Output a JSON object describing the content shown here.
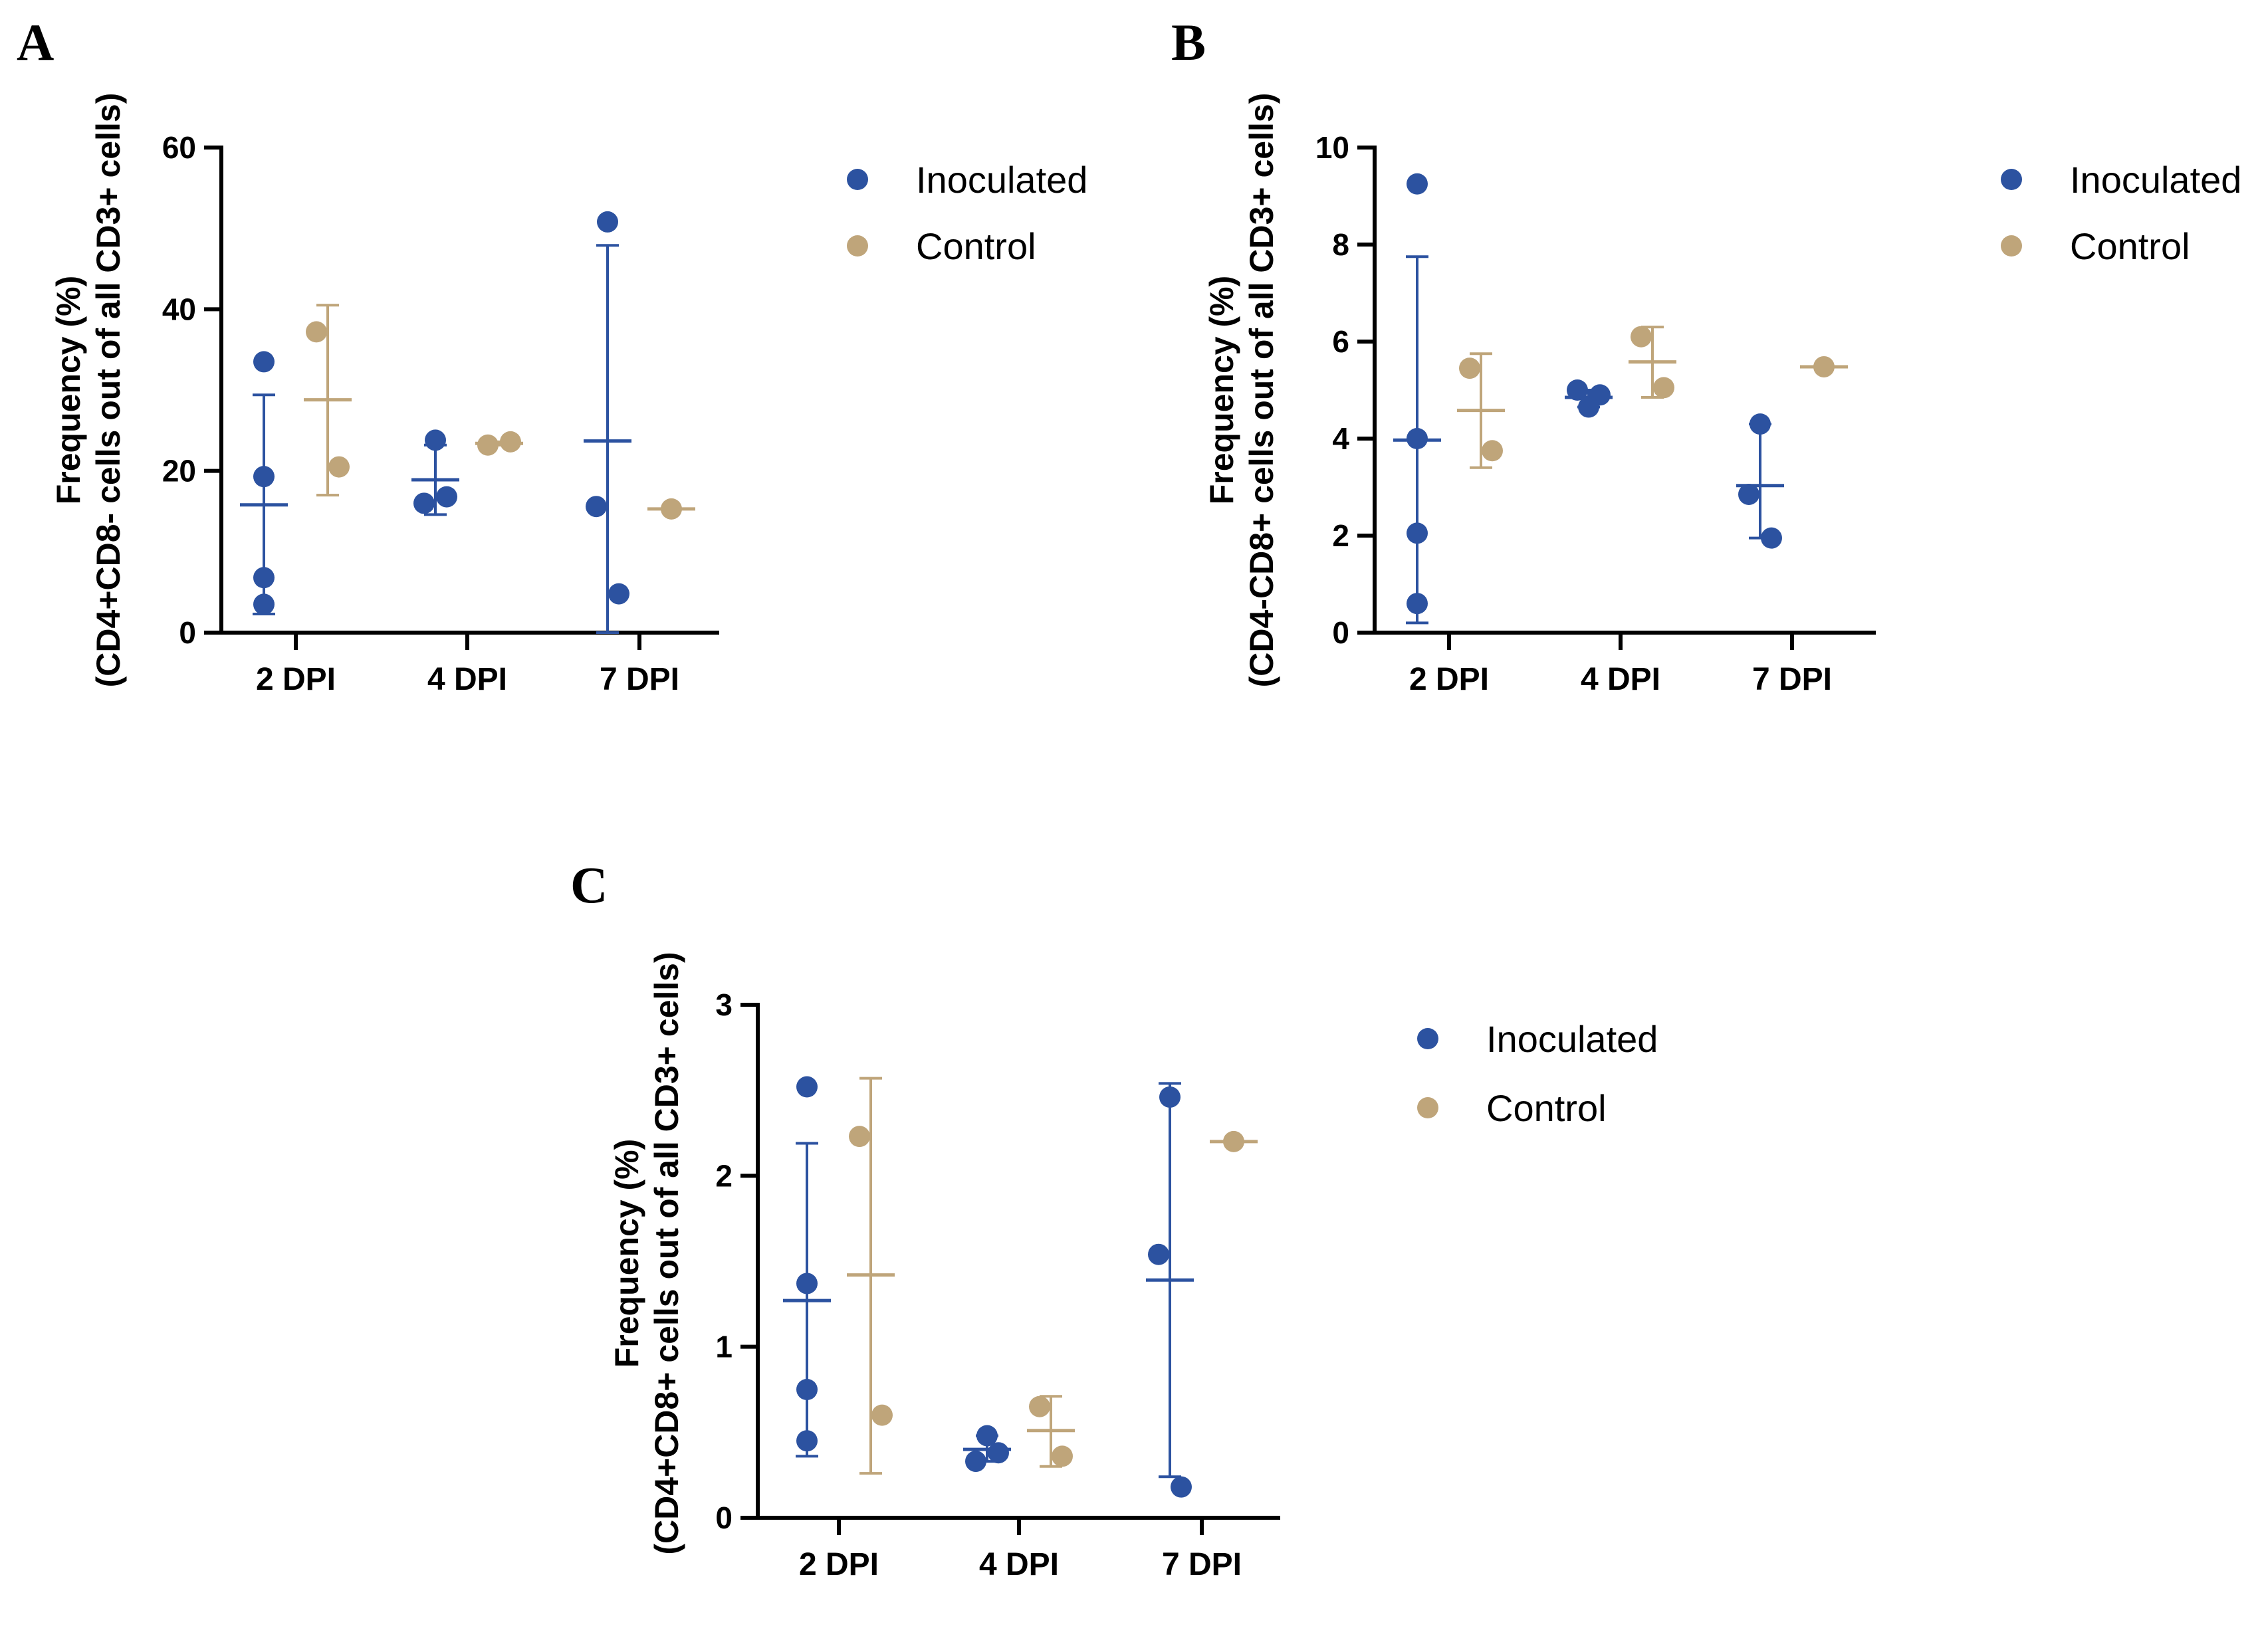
{
  "colors": {
    "inoculated": "#2c52a0",
    "control": "#bfa57a"
  },
  "chart_data": [
    {
      "panel": "A",
      "type": "scatter",
      "ylabel": [
        "Frequency (%)",
        "(CD4+CD8- cells out of all CD3+ cells)"
      ],
      "ylim": [
        0,
        60
      ],
      "yticks": [
        "0",
        "20",
        "40",
        "60"
      ],
      "categories": [
        "2 DPI",
        "4 DPI",
        "7 DPI"
      ],
      "legend": [
        "Inoculated",
        "Control"
      ],
      "series": [
        {
          "name": "Inoculated",
          "groups": [
            {
              "category": "2 DPI",
              "points": [
                33.5,
                19.3,
                6.8,
                3.5
              ],
              "mean": 15.8,
              "error": [
                2.3,
                29.4
              ]
            },
            {
              "category": "4 DPI",
              "points": [
                23.8,
                16.0,
                16.8
              ],
              "mean": 18.9,
              "error": [
                14.6,
                23.2
              ]
            },
            {
              "category": "7 DPI",
              "points": [
                50.8,
                15.6,
                4.8
              ],
              "mean": 23.7,
              "error": [
                0.0,
                47.9
              ]
            }
          ]
        },
        {
          "name": "Control",
          "groups": [
            {
              "category": "2 DPI",
              "points": [
                37.2,
                20.5
              ],
              "mean": 28.8,
              "error": [
                17.0,
                40.5
              ]
            },
            {
              "category": "4 DPI",
              "points": [
                23.2,
                23.6
              ],
              "mean": 23.4,
              "error": [
                23.2,
                23.6
              ]
            },
            {
              "category": "7 DPI",
              "points": [
                15.3
              ],
              "mean": 15.3,
              "error": [
                15.3,
                15.3
              ]
            }
          ]
        }
      ]
    },
    {
      "panel": "B",
      "type": "scatter",
      "ylabel": [
        "Frequency (%)",
        "(CD4-CD8+ cells out of all CD3+ cells)"
      ],
      "ylim": [
        0,
        10
      ],
      "yticks": [
        "0",
        "2",
        "4",
        "6",
        "8",
        "10"
      ],
      "categories": [
        "2 DPI",
        "4 DPI",
        "7 DPI"
      ],
      "legend": [
        "Inoculated",
        "Control"
      ],
      "series": [
        {
          "name": "Inoculated",
          "groups": [
            {
              "category": "2 DPI",
              "points": [
                9.25,
                4.0,
                2.05,
                0.6
              ],
              "mean": 3.97,
              "error": [
                0.2,
                7.75
              ]
            },
            {
              "category": "4 DPI",
              "points": [
                4.65,
                5.0,
                4.9
              ],
              "mean": 4.85,
              "error": [
                4.65,
                5.0
              ]
            },
            {
              "category": "7 DPI",
              "points": [
                4.3,
                2.85,
                1.95
              ],
              "mean": 3.03,
              "error": [
                1.95,
                4.3
              ]
            }
          ]
        },
        {
          "name": "Control",
          "groups": [
            {
              "category": "2 DPI",
              "points": [
                5.45,
                3.75
              ],
              "mean": 4.58,
              "error": [
                3.4,
                5.75
              ]
            },
            {
              "category": "4 DPI",
              "points": [
                6.1,
                5.05
              ],
              "mean": 5.58,
              "error": [
                4.85,
                6.3
              ]
            },
            {
              "category": "7 DPI",
              "points": [
                5.48
              ],
              "mean": 5.48,
              "error": [
                5.48,
                5.48
              ]
            }
          ]
        }
      ]
    },
    {
      "panel": "C",
      "type": "scatter",
      "ylabel": [
        "Frequency (%)",
        "(CD4+CD8+ cells out of all CD3+ cells)"
      ],
      "ylim": [
        0,
        3
      ],
      "yticks": [
        "0",
        "1",
        "2",
        "3"
      ],
      "categories": [
        "2 DPI",
        "4 DPI",
        "7 DPI"
      ],
      "legend": [
        "Inoculated",
        "Control"
      ],
      "series": [
        {
          "name": "Inoculated",
          "groups": [
            {
              "category": "2 DPI",
              "points": [
                2.52,
                1.37,
                0.75,
                0.45
              ],
              "mean": 1.27,
              "error": [
                0.36,
                2.19
              ]
            },
            {
              "category": "4 DPI",
              "points": [
                0.48,
                0.33,
                0.38
              ],
              "mean": 0.4,
              "error": [
                0.33,
                0.48
              ]
            },
            {
              "category": "7 DPI",
              "points": [
                2.46,
                1.54,
                0.18
              ],
              "mean": 1.39,
              "error": [
                0.24,
                2.54
              ]
            }
          ]
        },
        {
          "name": "Control",
          "groups": [
            {
              "category": "2 DPI",
              "points": [
                2.23,
                0.6
              ],
              "mean": 1.42,
              "error": [
                0.26,
                2.57
              ]
            },
            {
              "category": "4 DPI",
              "points": [
                0.65,
                0.36
              ],
              "mean": 0.51,
              "error": [
                0.3,
                0.71
              ]
            },
            {
              "category": "7 DPI",
              "points": [
                2.2
              ],
              "mean": 2.2,
              "error": [
                2.2,
                2.2
              ]
            }
          ]
        }
      ]
    }
  ]
}
